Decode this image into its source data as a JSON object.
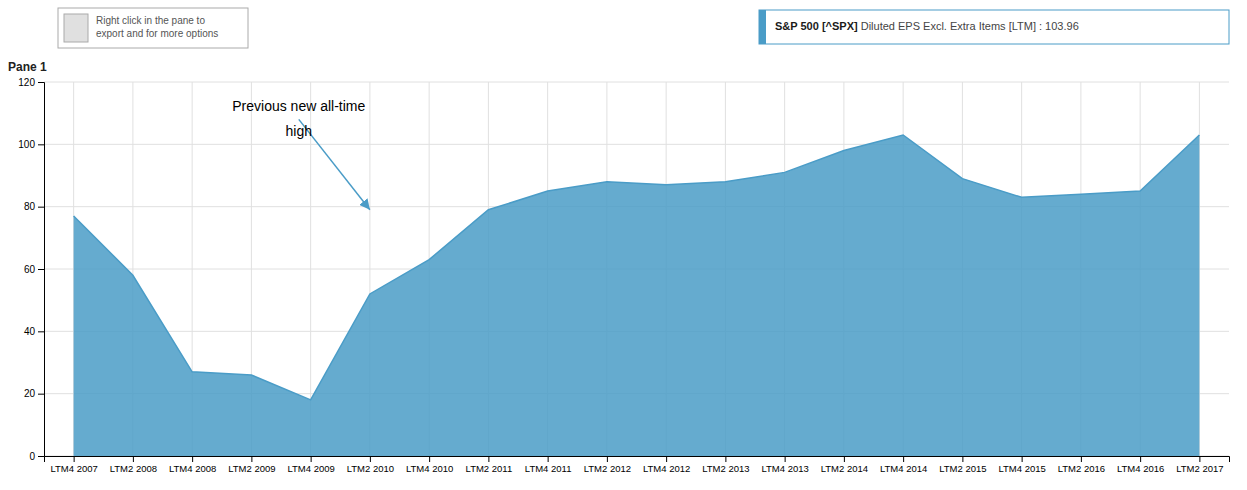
{
  "chart_data": {
    "type": "area",
    "title": "Pane 1",
    "categories": [
      "LTM4 2007",
      "LTM2 2008",
      "LTM4 2008",
      "LTM2 2009",
      "LTM4 2009",
      "LTM2 2010",
      "LTM4 2010",
      "LTM2 2011",
      "LTM4 2011",
      "LTM2 2012",
      "LTM4 2012",
      "LTM2 2013",
      "LTM4 2013",
      "LTM2 2014",
      "LTM4 2014",
      "LTM2 2015",
      "LTM4 2015",
      "LTM2 2016",
      "LTM4 2016",
      "LTM2 2017"
    ],
    "series": [
      {
        "name": "S&P 500 [^SPX]",
        "detail": " Diluted EPS Excl. Extra Items [LTM] : 103.96",
        "color": "#4a9cc7",
        "values": [
          77,
          58,
          27,
          26,
          18,
          52,
          63,
          79,
          85,
          88,
          87,
          88,
          91,
          98,
          103,
          89,
          83,
          84,
          85,
          103
        ]
      }
    ],
    "legend": "top-right",
    "ylim": [
      0,
      120
    ],
    "yticks": [
      0,
      20,
      40,
      60,
      80,
      100,
      120
    ],
    "grid": true,
    "annotations": [
      {
        "text": [
          "Previous new all-time",
          "high"
        ],
        "x": 5.0,
        "y": 79,
        "text_x": 3.8,
        "text_y": 108
      },
      {
        "text": [
          "Right click in the pane to",
          "export and for more options"
        ]
      }
    ]
  }
}
